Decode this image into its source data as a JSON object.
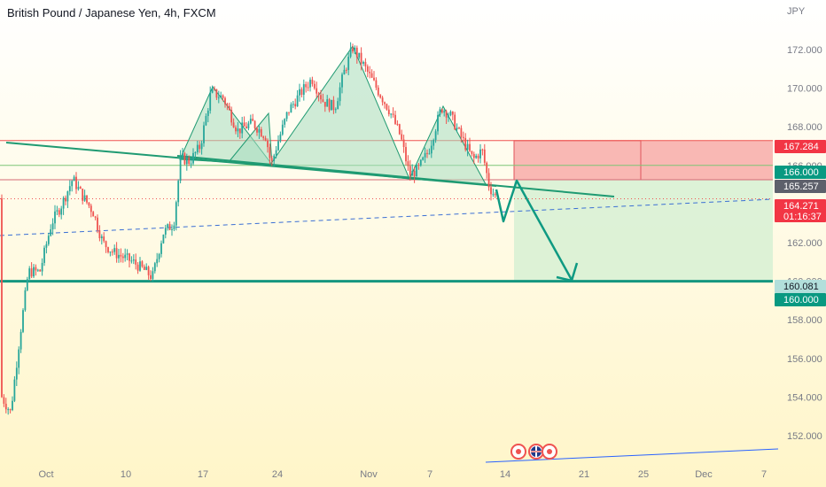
{
  "chart_data": {
    "type": "line",
    "title": "British Pound / Japanese Yen, 4h, FXCM",
    "currency": "JPY",
    "ylim": [
      150.5,
      173.5
    ],
    "y_ticks": [
      "172.000",
      "170.000",
      "168.000",
      "166.000",
      "164.000",
      "162.000",
      "160.000",
      "158.000",
      "156.000",
      "154.000",
      "152.000"
    ],
    "y_tick_values": [
      172,
      170,
      168,
      166,
      164,
      162,
      160,
      158,
      156,
      154,
      152
    ],
    "x_ticks": [
      "Oct",
      "10",
      "17",
      "24",
      "Nov",
      "7",
      "14",
      "21",
      "25",
      "Dec",
      "7"
    ],
    "price_labels": [
      {
        "text": "167.284",
        "value": 167.284,
        "color": "#f23645",
        "text_color": "#ffffff"
      },
      {
        "text": "166.000",
        "value": 166.0,
        "color": "#089981",
        "text_color": "#ffffff"
      },
      {
        "text": "165.257",
        "value": 165.257,
        "color": "#5d606b",
        "text_color": "#ffffff"
      },
      {
        "text": "164.271",
        "value": 164.271,
        "color": "#f23645",
        "text_color": "#ffffff",
        "countdown": "01:16:37"
      },
      {
        "text": "160.081",
        "value": 160.081,
        "color": "#b2dfdb",
        "text_color": "#131722"
      },
      {
        "text": "160.000",
        "value": 160.0,
        "color": "#089981",
        "text_color": "#ffffff"
      }
    ],
    "levels": {
      "target": 160.0,
      "stop_zone": [
        165.257,
        167.284
      ],
      "entry": 166.0,
      "current": 164.271
    },
    "pattern": "head-and-shoulders",
    "colors": {
      "bull": "#26a69a",
      "bear": "#ef5350",
      "pattern_fill": "#a8dcc0",
      "pattern_line": "#1f9a72",
      "projection": "#0f9a82",
      "background_top": "#ffffff",
      "background_bottom": "#fff5c8"
    },
    "icons": [
      "economic-event-icon",
      "uk-flag-icon",
      "economic-event-icon"
    ]
  }
}
